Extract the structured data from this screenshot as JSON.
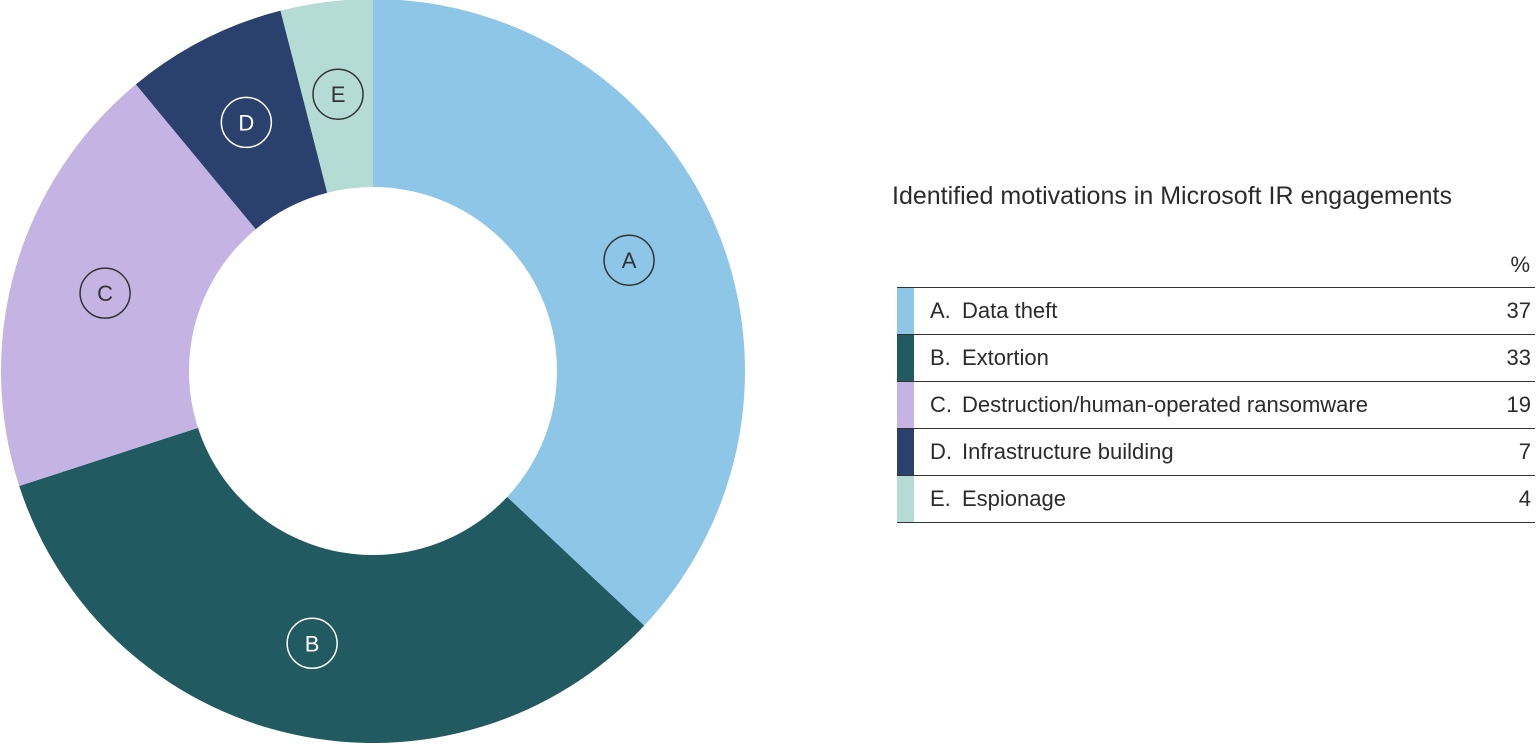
{
  "chart_data": {
    "type": "donut",
    "title": "Identified motivations in Microsoft IR engagements",
    "unit_header": "%",
    "series": [
      {
        "letter": "A",
        "name": "Data theft",
        "value": 37,
        "color": "#8ec6e8",
        "label_color": "#333333"
      },
      {
        "letter": "B",
        "name": "Extortion",
        "value": 33,
        "color": "#225a62",
        "label_color": "#ffffff"
      },
      {
        "letter": "C",
        "name": "Destruction/human-operated ransomware",
        "value": 19,
        "color": "#c4b3e3",
        "label_color": "#333333"
      },
      {
        "letter": "D",
        "name": "Infrastructure building",
        "value": 7,
        "color": "#2b416d",
        "label_color": "#ffffff"
      },
      {
        "letter": "E",
        "name": "Espionage",
        "value": 4,
        "color": "#b5dcd4",
        "label_color": "#333333"
      }
    ],
    "start_angle": "12 o'clock",
    "direction": "clockwise",
    "legend_position": "right"
  }
}
